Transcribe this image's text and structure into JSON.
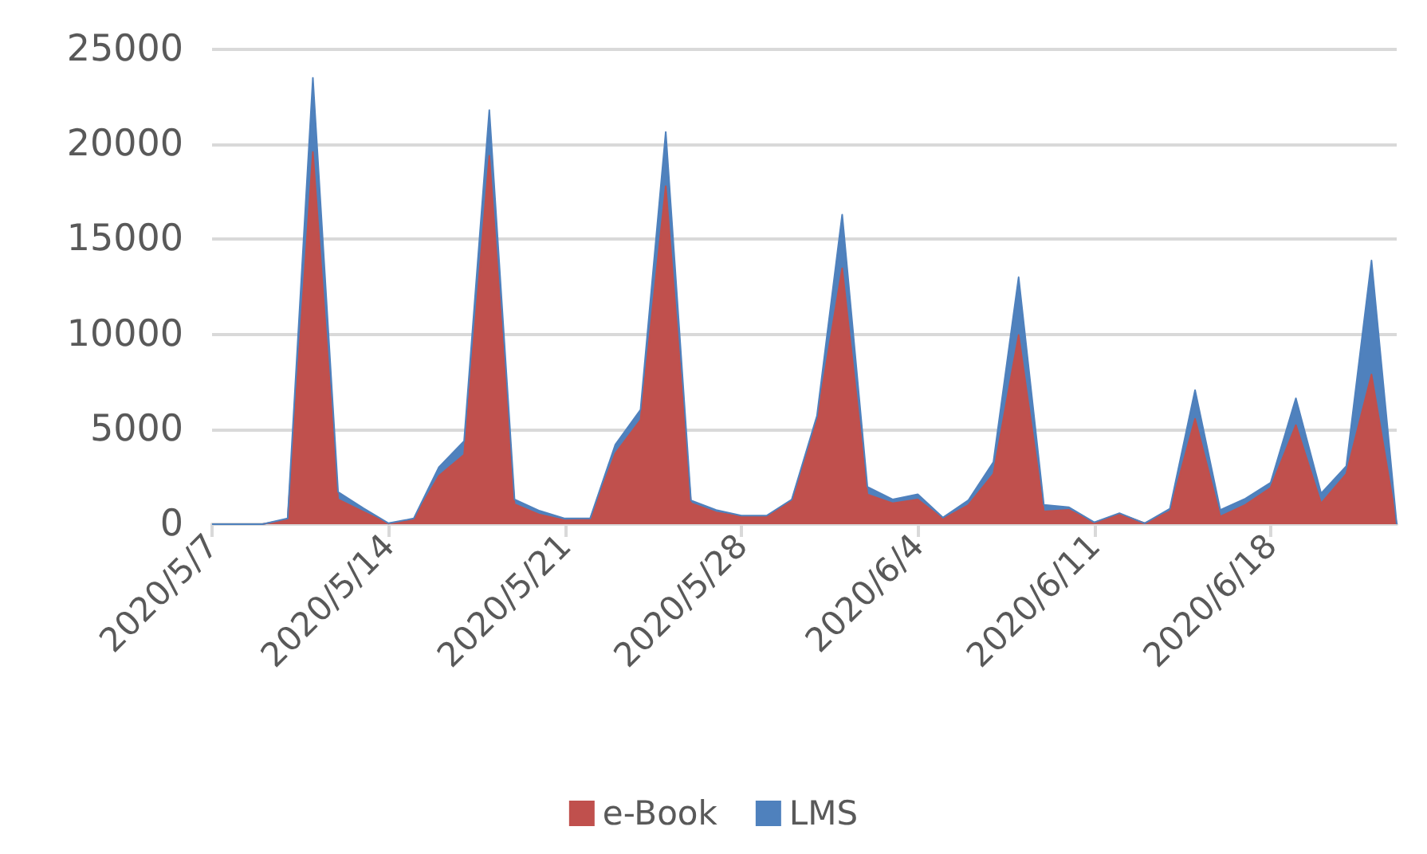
{
  "chart_data": {
    "type": "area",
    "stacked": true,
    "categories": [
      "2020/5/7",
      null,
      null,
      null,
      null,
      null,
      null,
      "2020/5/14",
      null,
      null,
      null,
      null,
      null,
      null,
      "2020/5/21",
      null,
      null,
      null,
      null,
      null,
      null,
      "2020/5/28",
      null,
      null,
      null,
      null,
      null,
      null,
      "2020/6/4",
      null,
      null,
      null,
      null,
      null,
      null,
      "2020/6/11",
      null,
      null,
      null,
      null,
      null,
      null,
      "2020/6/18",
      null,
      null,
      null,
      null,
      null
    ],
    "series": [
      {
        "name": "e-Book",
        "color": "#c0504d",
        "values": [
          0,
          0,
          0,
          250,
          19600,
          1300,
          650,
          30,
          250,
          2550,
          3660,
          19400,
          1050,
          500,
          200,
          270,
          3730,
          5490,
          17800,
          1100,
          620,
          400,
          400,
          1240,
          5490,
          13480,
          1570,
          1100,
          1300,
          270,
          1000,
          2650,
          9960,
          670,
          750,
          80,
          540,
          50,
          670,
          5550,
          400,
          1020,
          1920,
          5220,
          1100,
          2650,
          7880,
          0
        ]
      },
      {
        "name": "LMS",
        "color": "#4f81bd",
        "values": [
          0,
          0,
          0,
          50,
          3900,
          400,
          200,
          20,
          50,
          450,
          720,
          2400,
          250,
          200,
          100,
          30,
          460,
          540,
          2850,
          150,
          130,
          50,
          50,
          60,
          210,
          2820,
          400,
          200,
          270,
          80,
          250,
          620,
          3040,
          350,
          140,
          20,
          40,
          0,
          140,
          1510,
          350,
          330,
          270,
          1410,
          520,
          400,
          6000,
          0
        ]
      }
    ],
    "ylim": [
      0,
      25000
    ],
    "yticks": [
      0,
      5000,
      10000,
      15000,
      20000,
      25000
    ],
    "grid": "y",
    "legend": "bottom",
    "marker": "none"
  }
}
